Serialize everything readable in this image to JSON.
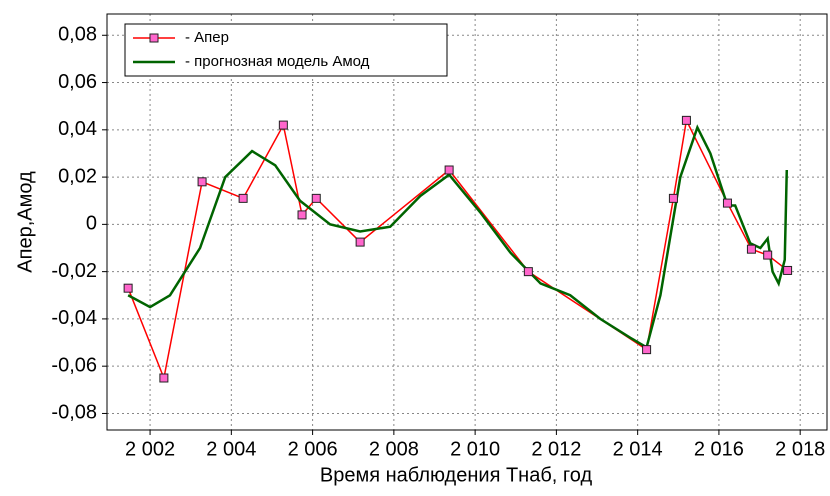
{
  "chart_data": {
    "type": "line",
    "xlabel": "Время наблюдения Тнаб, год",
    "ylabel": "Апер,Амод",
    "xlim": [
      2000.94,
      2018.66
    ],
    "ylim": [
      -0.087,
      0.089
    ],
    "xticks": [
      {
        "value": 2002,
        "label": "2 002"
      },
      {
        "value": 2004,
        "label": "2 004"
      },
      {
        "value": 2006,
        "label": "2 006"
      },
      {
        "value": 2008,
        "label": "2 008"
      },
      {
        "value": 2010,
        "label": "2 010"
      },
      {
        "value": 2012,
        "label": "2 012"
      },
      {
        "value": 2014,
        "label": "2 014"
      },
      {
        "value": 2016,
        "label": "2 016"
      },
      {
        "value": 2018,
        "label": "2 018"
      }
    ],
    "yticks": [
      {
        "value": -0.08,
        "label": "-0,08"
      },
      {
        "value": -0.06,
        "label": "-0,06"
      },
      {
        "value": -0.04,
        "label": "-0,04"
      },
      {
        "value": -0.02,
        "label": "-0,02"
      },
      0,
      {
        "value": 0.02,
        "label": "0,02"
      },
      {
        "value": 0.04,
        "label": "0,04"
      },
      {
        "value": 0.06,
        "label": "0,06"
      },
      {
        "value": 0.08,
        "label": "0,08"
      }
    ],
    "grid": true,
    "legend": "upper left",
    "series": [
      {
        "name": "- Апер",
        "color": "#ff0000",
        "marker": "square",
        "x": [
          2001.46,
          2002.34,
          2003.28,
          2004.29,
          2005.28,
          2005.74,
          2006.09,
          2007.17,
          2009.36,
          2011.31,
          2014.22,
          2014.88,
          2015.2,
          2016.21,
          2016.8,
          2017.2,
          2017.69
        ],
        "values": [
          -0.027,
          -0.065,
          0.018,
          0.011,
          0.042,
          0.004,
          0.011,
          -0.0075,
          0.023,
          -0.02,
          -0.053,
          0.011,
          0.044,
          0.009,
          -0.0105,
          -0.013,
          -0.0195
        ]
      },
      {
        "name": "- прогнозная модель Амод",
        "color": "#006400",
        "x": [
          2001.46,
          2002.0,
          2002.49,
          2003.23,
          2003.85,
          2004.51,
          2005.08,
          2005.69,
          2006.43,
          2007.17,
          2007.91,
          2008.65,
          2009.36,
          2010.13,
          2010.87,
          2011.61,
          2012.34,
          2013.08,
          2013.82,
          2014.22,
          2014.56,
          2015.05,
          2015.47,
          2015.79,
          2016.21,
          2016.4,
          2016.77,
          2017.02,
          2017.2,
          2017.32,
          2017.47,
          2017.62,
          2017.67
        ],
        "values": [
          -0.03,
          -0.035,
          -0.03,
          -0.01,
          0.02,
          0.031,
          0.025,
          0.01,
          0.0,
          -0.003,
          -0.001,
          0.012,
          0.021,
          0.005,
          -0.012,
          -0.025,
          -0.03,
          -0.04,
          -0.048,
          -0.052,
          -0.03,
          0.02,
          0.041,
          0.03,
          0.008,
          0.008,
          -0.008,
          -0.01,
          -0.006,
          -0.02,
          -0.025,
          -0.015,
          0.023
        ]
      }
    ]
  }
}
